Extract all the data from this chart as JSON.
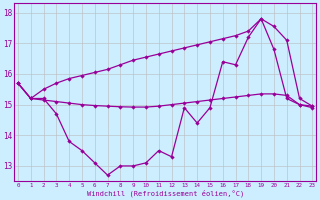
{
  "xlabel": "Windchill (Refroidissement éolien,°C)",
  "hours": [
    0,
    1,
    2,
    3,
    4,
    5,
    6,
    7,
    8,
    9,
    10,
    11,
    12,
    13,
    14,
    15,
    16,
    17,
    18,
    19,
    20,
    21,
    22,
    23
  ],
  "windchill": [
    15.7,
    15.2,
    15.2,
    14.7,
    13.8,
    13.5,
    13.1,
    12.7,
    13.0,
    13.0,
    13.1,
    13.5,
    13.3,
    14.9,
    14.4,
    14.9,
    16.4,
    16.3,
    17.2,
    17.8,
    16.8,
    15.2,
    15.0,
    14.9
  ],
  "line_upper": [
    15.7,
    15.2,
    15.5,
    15.7,
    15.85,
    15.95,
    16.05,
    16.15,
    16.3,
    16.45,
    16.55,
    16.65,
    16.75,
    16.85,
    16.95,
    17.05,
    17.15,
    17.25,
    17.4,
    17.8,
    17.55,
    17.1,
    15.2,
    14.95
  ],
  "line_lower": [
    15.7,
    15.2,
    15.15,
    15.1,
    15.05,
    15.0,
    14.97,
    14.95,
    14.93,
    14.92,
    14.92,
    14.95,
    15.0,
    15.05,
    15.1,
    15.15,
    15.2,
    15.25,
    15.3,
    15.35,
    15.35,
    15.3,
    15.0,
    14.95
  ],
  "color": "#990099",
  "bg_color": "#cceeff",
  "grid_color": "#bbbbbb",
  "ylim": [
    12.5,
    18.3
  ],
  "xlim": [
    -0.3,
    23.3
  ],
  "yticks": [
    13,
    14,
    15,
    16,
    17,
    18
  ],
  "marker_size": 2.2,
  "linewidth": 0.9
}
